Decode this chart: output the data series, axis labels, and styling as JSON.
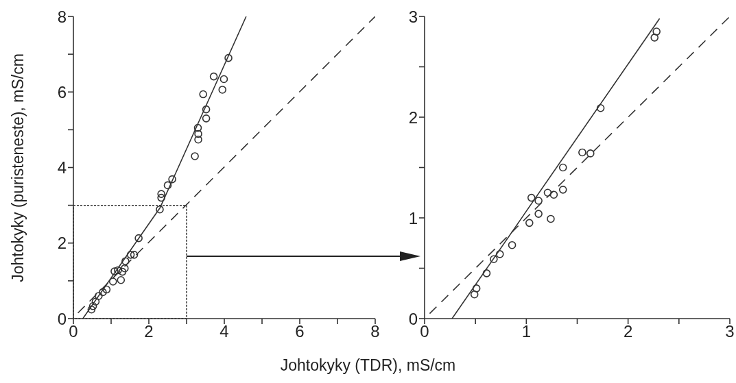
{
  "chart_data": [
    {
      "type": "scatter",
      "xlabel": "Johtokyky (TDR), mS/cm",
      "ylabel": "Johtokyky (puristeneste), mS/cm",
      "xlim": [
        0,
        8
      ],
      "ylim": [
        0,
        8
      ],
      "xticks": [
        0,
        {
          "value": 1,
          "label": null
        },
        2,
        {
          "value": 3,
          "label": null
        },
        4,
        {
          "value": 5,
          "label": null
        },
        6,
        {
          "value": 7,
          "label": null
        },
        8
      ],
      "yticks": [
        0,
        {
          "value": 1,
          "label": null
        },
        2,
        {
          "value": 3,
          "label": null
        },
        4,
        {
          "value": 5,
          "label": null
        },
        6,
        {
          "value": 7,
          "label": null
        },
        8
      ],
      "series": [
        {
          "marker": "circle",
          "color": "#333333",
          "x": [
            0.48,
            0.52,
            0.59,
            0.67,
            0.78,
            0.88,
            1.05,
            1.09,
            1.26,
            1.18,
            1.3,
            1.36,
            1.38,
            1.52,
            1.61,
            1.73,
            2.29,
            2.33,
            2.33,
            2.5,
            2.62,
            3.22,
            3.31,
            3.31,
            3.3,
            3.52,
            3.52,
            3.44,
            3.95,
            3.99,
            3.72,
            4.11
          ],
          "values": [
            0.24,
            0.33,
            0.45,
            0.6,
            0.7,
            0.77,
            0.98,
            1.25,
            1.02,
            1.28,
            1.24,
            1.33,
            1.52,
            1.69,
            1.69,
            2.13,
            2.89,
            3.3,
            3.2,
            3.53,
            3.69,
            4.3,
            4.74,
            4.89,
            5.05,
            5.3,
            5.54,
            5.94,
            6.06,
            6.34,
            6.41,
            6.9
          ]
        },
        {
          "type": "line",
          "color": "#333333",
          "line_style": "solid",
          "x": [
            0.25,
            2.3,
            4.58
          ],
          "values": [
            0,
            2.94,
            8
          ]
        },
        {
          "type": "line",
          "color": "#333333",
          "line_style": "dashed",
          "x": [
            0.12,
            8
          ],
          "values": [
            0.15,
            8
          ]
        }
      ]
    },
    {
      "type": "scatter",
      "xlim": [
        0,
        3
      ],
      "ylim": [
        0,
        3
      ],
      "xticks": [
        0,
        {
          "value": 0.5,
          "label": null
        },
        1,
        {
          "value": 1.5,
          "label": null
        },
        2,
        {
          "value": 2.5,
          "label": null
        },
        3
      ],
      "yticks": [
        0,
        {
          "value": 0.5,
          "label": null
        },
        1,
        {
          "value": 1.5,
          "label": null
        },
        2,
        {
          "value": 2.5,
          "label": null
        },
        3
      ],
      "series": [
        {
          "marker": "circle",
          "color": "#333333",
          "x": [
            0.49,
            0.51,
            0.61,
            0.68,
            0.74,
            0.86,
            1.03,
            1.05,
            1.12,
            1.12,
            1.21,
            1.24,
            1.27,
            1.36,
            1.36,
            1.55,
            1.63,
            1.73,
            2.26,
            2.28
          ],
          "values": [
            0.24,
            0.3,
            0.45,
            0.59,
            0.64,
            0.73,
            0.95,
            1.2,
            1.17,
            1.04,
            1.25,
            0.99,
            1.23,
            1.28,
            1.5,
            1.65,
            1.64,
            2.09,
            2.79,
            2.85
          ]
        },
        {
          "type": "line",
          "color": "#333333",
          "line_style": "solid",
          "x": [
            0.27,
            2.31
          ],
          "values": [
            0,
            2.98
          ]
        },
        {
          "type": "line",
          "color": "#333333",
          "line_style": "dashed",
          "x": [
            0.05,
            3
          ],
          "values": [
            0.05,
            3
          ]
        }
      ]
    }
  ]
}
